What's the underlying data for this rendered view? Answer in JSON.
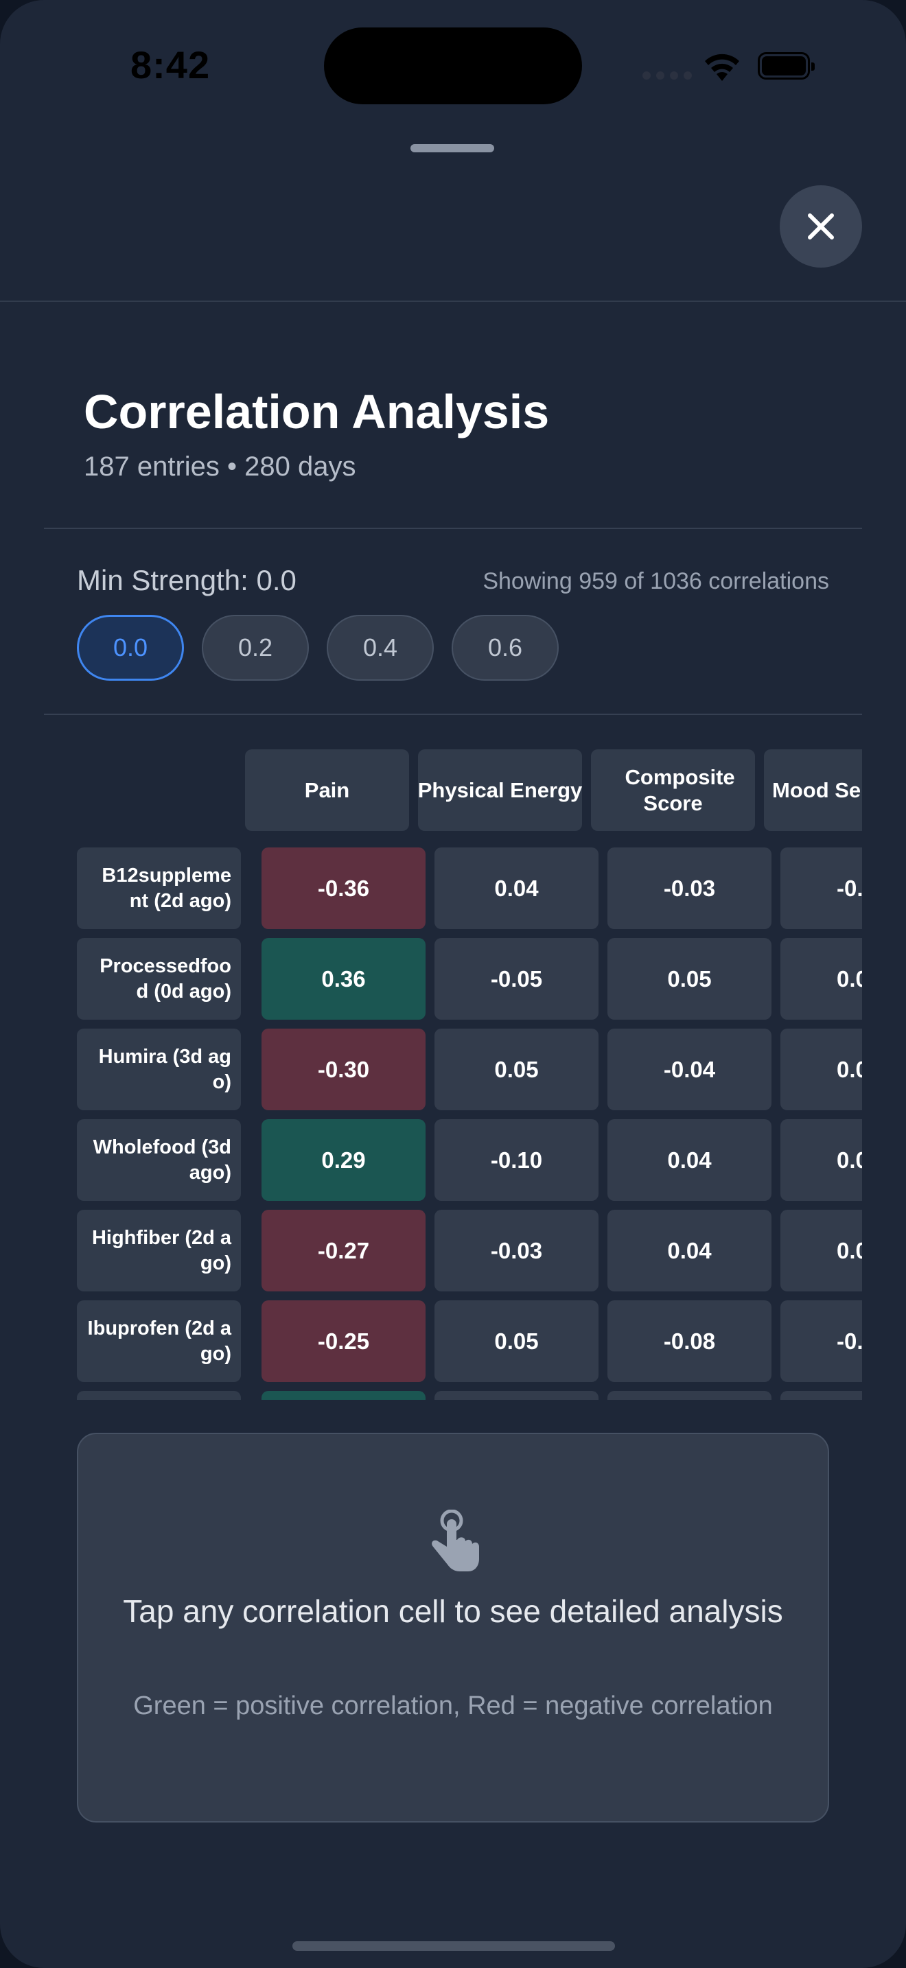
{
  "status_bar": {
    "time": "8:42"
  },
  "header": {
    "close_icon": "close-icon"
  },
  "title": "Correlation Analysis",
  "subtitle": "187 entries • 280 days",
  "filter": {
    "label": "Min Strength: 0.0",
    "showing": "Showing 959 of 1036 correlations",
    "options": [
      "0.0",
      "0.2",
      "0.4",
      "0.6"
    ],
    "selected": "0.0"
  },
  "matrix": {
    "columns": [
      "Pain",
      "Physical Energy",
      "Composite Score",
      "Mood Se"
    ],
    "rows": [
      {
        "label": "B12suppleme nt (2d ago)",
        "values": [
          "-0.36",
          "0.04",
          "-0.03",
          "-0."
        ],
        "polarity": [
          "neg",
          "",
          "",
          ""
        ]
      },
      {
        "label": "Processedfoo d (0d ago)",
        "values": [
          "0.36",
          "-0.05",
          "0.05",
          "0.0"
        ],
        "polarity": [
          "pos",
          "",
          "",
          ""
        ]
      },
      {
        "label": "Humira (3d ago)",
        "values": [
          "-0.30",
          "0.05",
          "-0.04",
          "0.0"
        ],
        "polarity": [
          "neg",
          "",
          "",
          ""
        ]
      },
      {
        "label": "Wholefood (3d ago)",
        "values": [
          "0.29",
          "-0.10",
          "0.04",
          "0.0"
        ],
        "polarity": [
          "pos",
          "",
          "",
          ""
        ]
      },
      {
        "label": "Highfiber (2d ago)",
        "values": [
          "-0.27",
          "-0.03",
          "0.04",
          "0.0"
        ],
        "polarity": [
          "neg",
          "",
          "",
          ""
        ]
      },
      {
        "label": "Ibuprofen (2d ago)",
        "values": [
          "-0.25",
          "0.05",
          "-0.08",
          "-0."
        ],
        "polarity": [
          "neg",
          "",
          "",
          ""
        ]
      },
      {
        "label": "",
        "values": [
          "",
          "",
          "",
          ""
        ],
        "polarity": [
          "pos",
          "",
          "",
          ""
        ]
      }
    ],
    "colors": {
      "negative": "#5e3040",
      "positive": "#1b5652",
      "neutral": "#333c4c"
    }
  },
  "hint": {
    "icon": "tap-hand-icon",
    "title": "Tap any correlation cell to see detailed analysis",
    "subtitle": "Green = positive correlation, Red = negative correlation"
  }
}
